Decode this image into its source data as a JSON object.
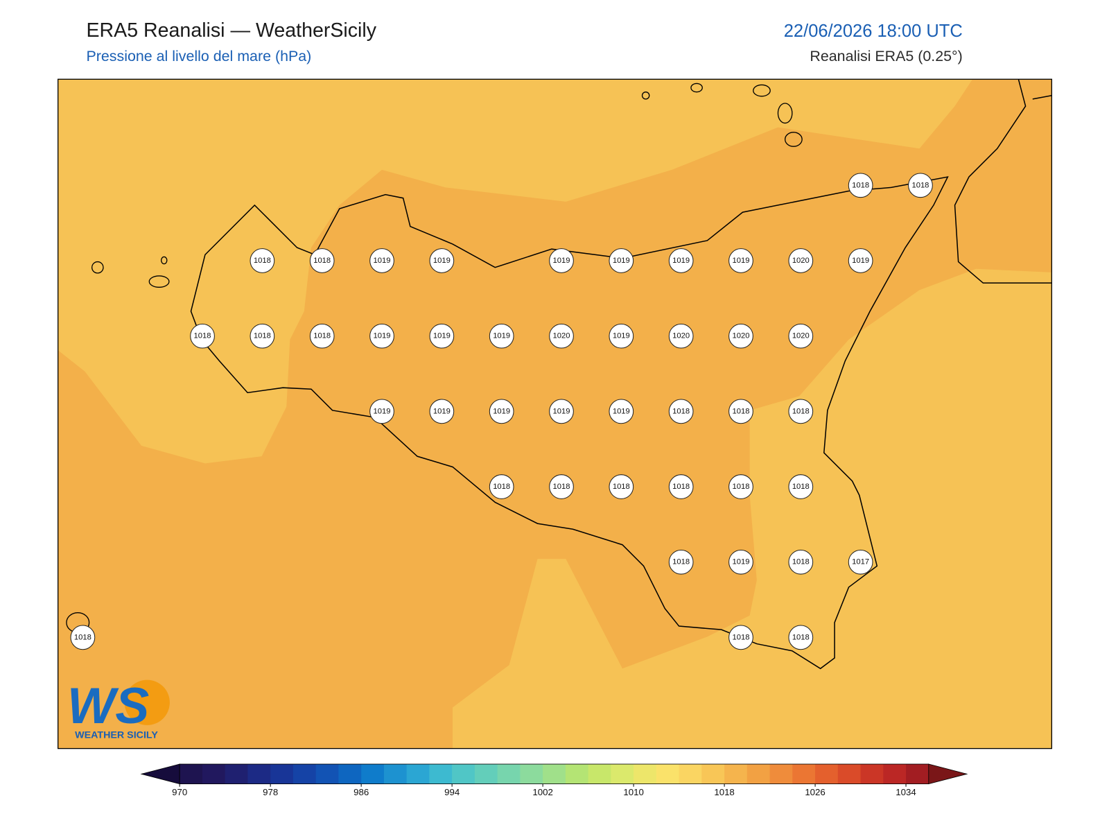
{
  "header": {
    "title": "ERA5 Reanalisi — WeatherSicily",
    "subtitle": "Pressione al livello del mare (hPa)",
    "datetime": "22/06/2026 18:00 UTC",
    "source": "Reanalisi ERA5 (0.25°)"
  },
  "stations": [
    [
      null,
      null,
      null,
      null,
      null,
      null,
      null,
      null,
      null,
      null,
      null,
      null,
      null,
      1018,
      1018
    ],
    [
      null,
      null,
      null,
      1018,
      1018,
      1019,
      1019,
      null,
      1019,
      1019,
      1019,
      1019,
      1020,
      1019,
      null
    ],
    [
      null,
      null,
      1018,
      1018,
      1018,
      1019,
      1019,
      1019,
      1020,
      1019,
      1020,
      1020,
      1020,
      null,
      null
    ],
    [
      null,
      null,
      null,
      null,
      null,
      1019,
      1019,
      1019,
      1019,
      1019,
      1018,
      1018,
      1018,
      null,
      null
    ],
    [
      null,
      null,
      null,
      null,
      null,
      null,
      null,
      1018,
      1018,
      1018,
      1018,
      1018,
      1018,
      null,
      null
    ],
    [
      null,
      null,
      null,
      null,
      null,
      null,
      null,
      null,
      null,
      null,
      1018,
      1019,
      1018,
      1017,
      null
    ],
    [
      1018,
      null,
      null,
      null,
      null,
      null,
      null,
      null,
      null,
      null,
      null,
      1018,
      1018,
      null,
      null
    ]
  ],
  "colorbar": {
    "lim": [
      970,
      1036
    ],
    "ticks": [
      970,
      978,
      986,
      994,
      1002,
      1010,
      1018,
      1026,
      1034
    ],
    "colors": [
      "#1e1450",
      "#21185e",
      "#1f2070",
      "#1c2a85",
      "#183597",
      "#1543a6",
      "#1253b4",
      "#0e66c0",
      "#0f7ccb",
      "#1d92d0",
      "#2ba6d3",
      "#3dbad0",
      "#50c6c6",
      "#63ceba",
      "#77d5ad",
      "#8cdb9d",
      "#a0e08a",
      "#b4e474",
      "#c8e76a",
      "#dbe96c",
      "#ede66a",
      "#fae26a",
      "#fad562",
      "#f8c657",
      "#f5b44d",
      "#f2a143",
      "#ef8c3b",
      "#eb7633",
      "#e4602d",
      "#da4b29",
      "#cb3626",
      "#bb2725",
      "#a21d22"
    ],
    "under_color": "#160c3c",
    "over_color": "#7a1618"
  },
  "logo": {
    "mark": "WS",
    "name": "WEATHER SICILY"
  }
}
